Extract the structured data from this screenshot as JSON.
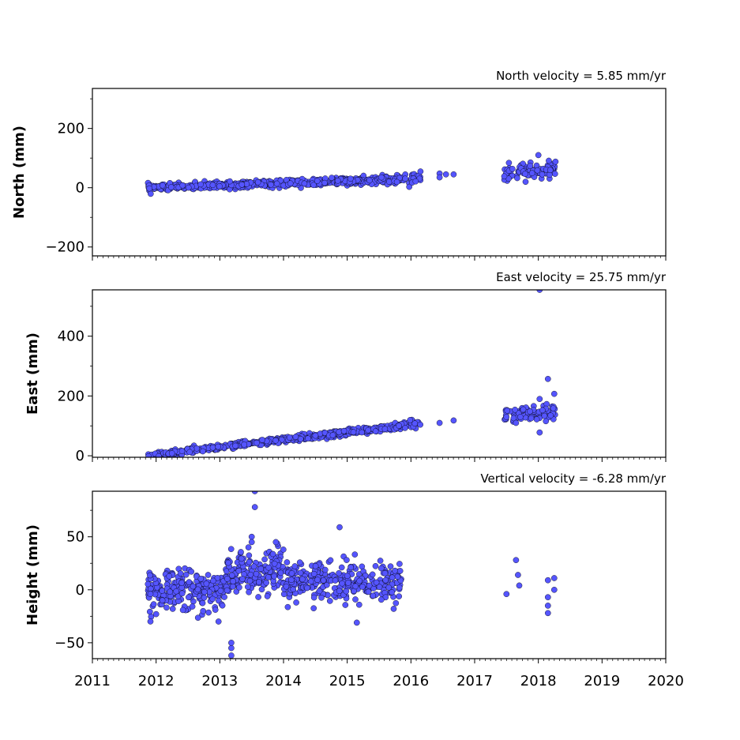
{
  "chart_data": [
    {
      "type": "scatter",
      "title": "North velocity = 5.85 mm/yr",
      "xlabel": "",
      "ylabel": "North (mm)",
      "xlim": [
        2011,
        2020
      ],
      "ylim": [
        -230,
        335
      ],
      "yticks": [
        -200,
        0,
        200
      ],
      "grid": false,
      "marker_color": "#5555ff",
      "segments": [
        {
          "x0": 2011.87,
          "x1": 2015.85,
          "y0": 0,
          "y1": 28,
          "noise": 6,
          "count": 520
        },
        {
          "x0": 2015.72,
          "x1": 2016.15,
          "y0": 26,
          "y1": 35,
          "noise": 10,
          "count": 30
        },
        {
          "x0": 2017.45,
          "x1": 2018.28,
          "y0": 45,
          "y1": 65,
          "noise": 12,
          "count": 90
        }
      ],
      "points": [
        [
          2016.45,
          48
        ],
        [
          2016.45,
          35
        ],
        [
          2016.55,
          45
        ],
        [
          2016.67,
          45
        ],
        [
          2016.15,
          55
        ],
        [
          2018.0,
          110
        ],
        [
          2017.8,
          20
        ],
        [
          2018.27,
          88
        ]
      ]
    },
    {
      "type": "scatter",
      "title": "East velocity = 25.75 mm/yr",
      "xlabel": "",
      "ylabel": "East (mm)",
      "xlim": [
        2011,
        2020
      ],
      "ylim": [
        -5,
        555
      ],
      "yticks": [
        0,
        200,
        400
      ],
      "grid": false,
      "marker_color": "#5555ff",
      "segments": [
        {
          "x0": 2011.87,
          "x1": 2015.85,
          "y0": 0,
          "y1": 100,
          "noise": 5,
          "count": 520
        },
        {
          "x0": 2015.72,
          "x1": 2016.15,
          "y0": 95,
          "y1": 105,
          "noise": 8,
          "count": 30
        },
        {
          "x0": 2017.45,
          "x1": 2018.28,
          "y0": 135,
          "y1": 150,
          "noise": 12,
          "count": 90
        }
      ],
      "points": [
        [
          2016.45,
          110
        ],
        [
          2016.67,
          118
        ],
        [
          2018.02,
          78
        ],
        [
          2018.02,
          190
        ],
        [
          2018.02,
          555
        ],
        [
          2018.15,
          257
        ],
        [
          2018.25,
          207
        ],
        [
          2017.65,
          110
        ]
      ]
    },
    {
      "type": "scatter",
      "title": "Vertical velocity = -6.28 mm/yr",
      "xlabel": "",
      "ylabel": "Height (mm)",
      "xlim": [
        2011,
        2020
      ],
      "ylim": [
        -65,
        93
      ],
      "yticks": [
        -50,
        0,
        50
      ],
      "xticks": [
        2011,
        2012,
        2013,
        2014,
        2015,
        2016,
        2017,
        2018,
        2019,
        2020
      ],
      "grid": false,
      "marker_color": "#5555ff",
      "segments": [
        {
          "x0": 2011.87,
          "x1": 2013.1,
          "y0": 0,
          "y1": 0,
          "noise": 9,
          "count": 230
        },
        {
          "x0": 2013.1,
          "x1": 2014.0,
          "y0": 15,
          "y1": 18,
          "noise": 10,
          "count": 160
        },
        {
          "x0": 2014.0,
          "x1": 2015.85,
          "y0": 8,
          "y1": 5,
          "noise": 10,
          "count": 300
        }
      ],
      "points": [
        [
          2013.18,
          -62
        ],
        [
          2013.18,
          -55
        ],
        [
          2013.18,
          -50
        ],
        [
          2013.55,
          93
        ],
        [
          2013.55,
          78
        ],
        [
          2013.5,
          50
        ],
        [
          2013.5,
          45
        ],
        [
          2013.45,
          40
        ],
        [
          2013.88,
          45
        ],
        [
          2014.88,
          59
        ],
        [
          2014.2,
          -12
        ],
        [
          2015.15,
          -31
        ],
        [
          2012.0,
          -23
        ],
        [
          2012.98,
          -30
        ],
        [
          2017.5,
          -4
        ],
        [
          2017.65,
          28
        ],
        [
          2017.68,
          14
        ],
        [
          2017.7,
          4
        ],
        [
          2018.15,
          9
        ],
        [
          2018.15,
          -7
        ],
        [
          2018.15,
          -15
        ],
        [
          2018.15,
          -22
        ],
        [
          2018.25,
          11
        ],
        [
          2018.25,
          0
        ]
      ]
    }
  ]
}
